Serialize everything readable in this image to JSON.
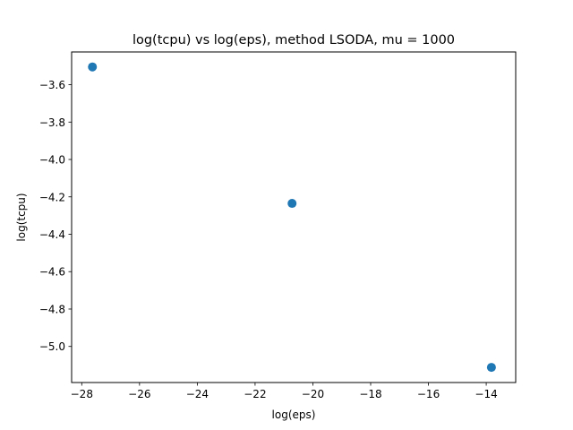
{
  "chart_data": {
    "type": "scatter",
    "title": "log(tcpu) vs log(eps), method LSODA, mu = 1000",
    "xlabel": "log(eps)",
    "ylabel": "log(tcpu)",
    "xlim": [
      -28.35,
      -12.98
    ],
    "ylim": [
      -5.193,
      -3.425
    ],
    "x_ticks": [
      -28,
      -26,
      -24,
      -22,
      -20,
      -18,
      -16,
      -14
    ],
    "x_tick_labels": [
      "−28",
      "−26",
      "−24",
      "−22",
      "−20",
      "−18",
      "−16",
      "−14"
    ],
    "y_ticks": [
      -3.6,
      -3.8,
      -4.0,
      -4.2,
      -4.4,
      -4.6,
      -4.8,
      -5.0
    ],
    "y_tick_labels": [
      "−3.6",
      "−3.8",
      "−4.0",
      "−4.2",
      "−4.4",
      "−4.6",
      "−4.8",
      "−5.0"
    ],
    "x": [
      -27.63,
      -20.72,
      -13.82
    ],
    "y": [
      -3.505,
      -4.235,
      -5.112
    ],
    "grid": false,
    "marker_color": "#1f77b4"
  }
}
